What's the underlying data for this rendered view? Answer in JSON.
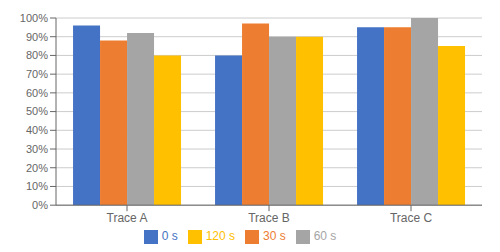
{
  "chart_data": {
    "type": "bar",
    "categories": [
      "Trace A",
      "Trace B",
      "Trace C"
    ],
    "series": [
      {
        "name": "0 s",
        "color": "#4472C4",
        "values": [
          0.96,
          0.8,
          0.95
        ]
      },
      {
        "name": "30 s",
        "color": "#ED7D31",
        "values": [
          0.88,
          0.97,
          0.95
        ]
      },
      {
        "name": "60 s",
        "color": "#A5A5A5",
        "values": [
          0.92,
          0.9,
          1.0
        ]
      },
      {
        "name": "120 s",
        "color": "#FFC000",
        "values": [
          0.8,
          0.9,
          0.85
        ]
      }
    ],
    "ylim": [
      0,
      1.0
    ],
    "yticks": [
      {
        "value": 0.0,
        "label": "0%"
      },
      {
        "value": 0.1,
        "label": "10%"
      },
      {
        "value": 0.2,
        "label": "20%"
      },
      {
        "value": 0.3,
        "label": "30%"
      },
      {
        "value": 0.4,
        "label": "40%"
      },
      {
        "value": 0.5,
        "label": "50%"
      },
      {
        "value": 0.6,
        "label": "60%"
      },
      {
        "value": 0.7,
        "label": "70%"
      },
      {
        "value": 0.8,
        "label": "80%"
      },
      {
        "value": 0.9,
        "label": "90%"
      },
      {
        "value": 1.0,
        "label": "100%"
      }
    ],
    "grid": true,
    "legend": "bottom"
  }
}
